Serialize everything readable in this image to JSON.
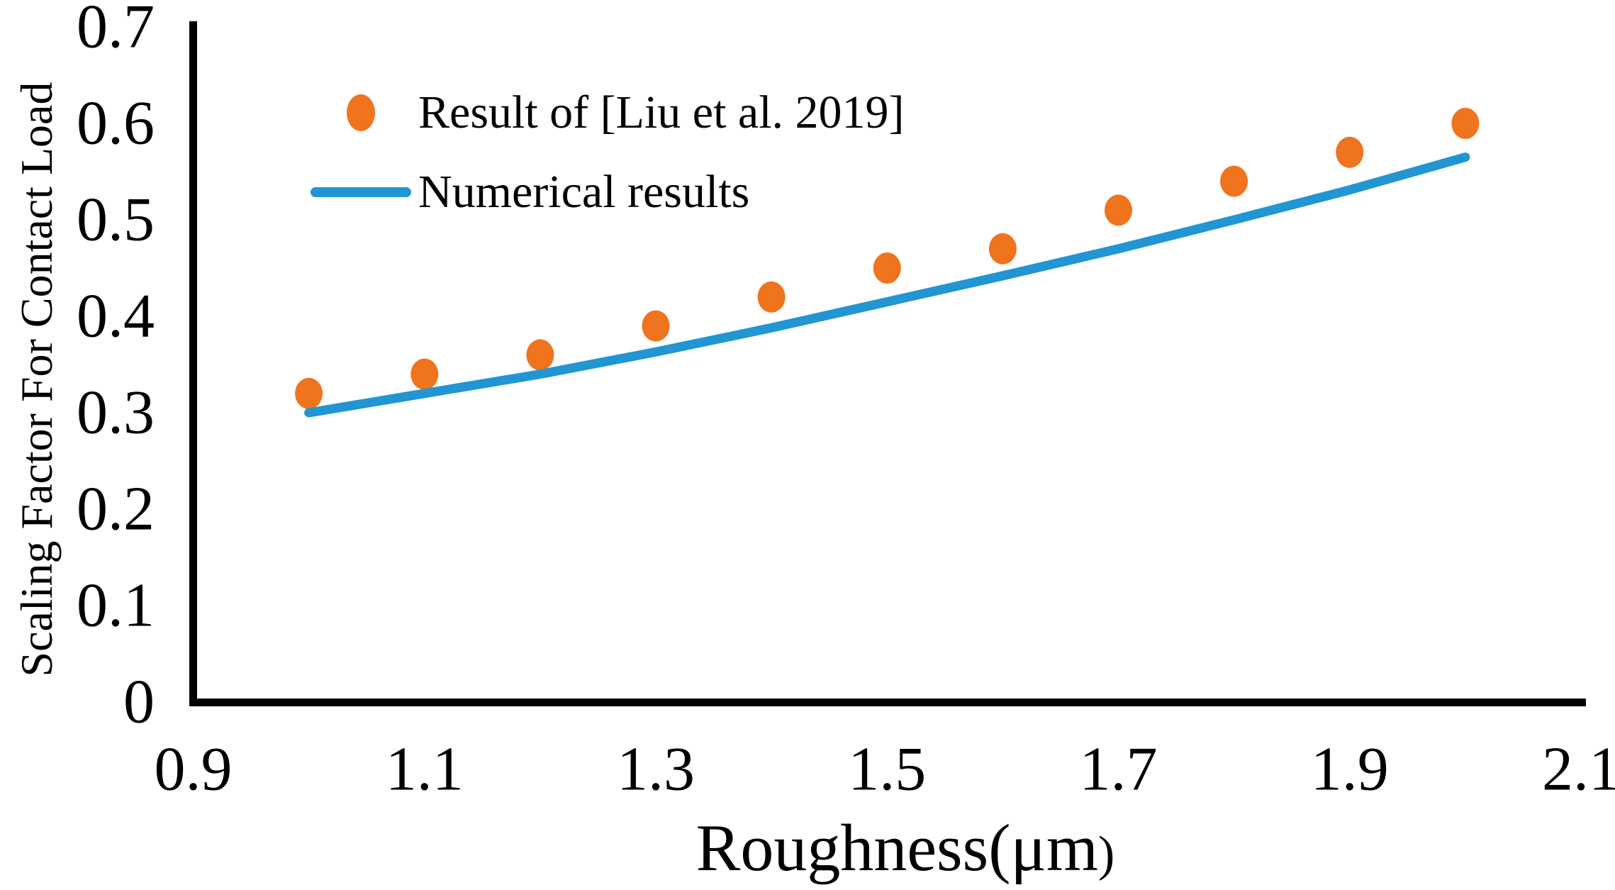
{
  "figure": {
    "background": "#ffffff",
    "axis_color": "#000000",
    "text_color": "#000000"
  },
  "axes": {
    "x_title": "Roughness(μm)",
    "y_title": "Scaling Factor For Contact Load",
    "x_tick_labels": [
      "0.9",
      "1.1",
      "1.3",
      "1.5",
      "1.7",
      "1.9",
      "2.1"
    ],
    "y_tick_labels": [
      "0.7",
      "0.6",
      "0.5",
      "0.4",
      "0.3",
      "0.2",
      "0.1",
      "0"
    ]
  },
  "legend": {
    "entries": [
      {
        "label": "Result of [Liu et al. 2019]",
        "marker": "dot-icon",
        "color": "#F0731E"
      },
      {
        "label": "Numerical results",
        "marker": "line-icon",
        "color": "#2295D3"
      }
    ]
  },
  "chart_data": {
    "type": "scatter",
    "title": "",
    "xlabel": "Roughness(μm)",
    "ylabel": "Scaling Factor For Contact Load",
    "xlim": [
      0.9,
      2.1
    ],
    "ylim": [
      0,
      0.7
    ],
    "x_ticks": [
      0.9,
      1.1,
      1.3,
      1.5,
      1.7,
      1.9,
      2.1
    ],
    "y_ticks": [
      0.7,
      0.6,
      0.5,
      0.4,
      0.3,
      0.2,
      0.1,
      0
    ],
    "grid": false,
    "legend_position": "inside upper-left",
    "series": [
      {
        "name": "Result of [Liu et al. 2019]",
        "plot": "scatter",
        "color": "#F0731E",
        "x": [
          1.0,
          1.1,
          1.2,
          1.3,
          1.4,
          1.5,
          1.6,
          1.7,
          1.8,
          1.9,
          2.0
        ],
        "y": [
          0.32,
          0.34,
          0.36,
          0.39,
          0.42,
          0.45,
          0.47,
          0.51,
          0.54,
          0.57,
          0.6
        ]
      },
      {
        "name": "Numerical results",
        "plot": "line",
        "color": "#2295D3",
        "x": [
          1.0,
          1.1,
          1.2,
          1.3,
          1.4,
          1.5,
          1.6,
          1.7,
          1.8,
          1.9,
          2.0
        ],
        "y": [
          0.3,
          0.32,
          0.34,
          0.363,
          0.388,
          0.415,
          0.442,
          0.47,
          0.5,
          0.531,
          0.565
        ]
      }
    ]
  }
}
